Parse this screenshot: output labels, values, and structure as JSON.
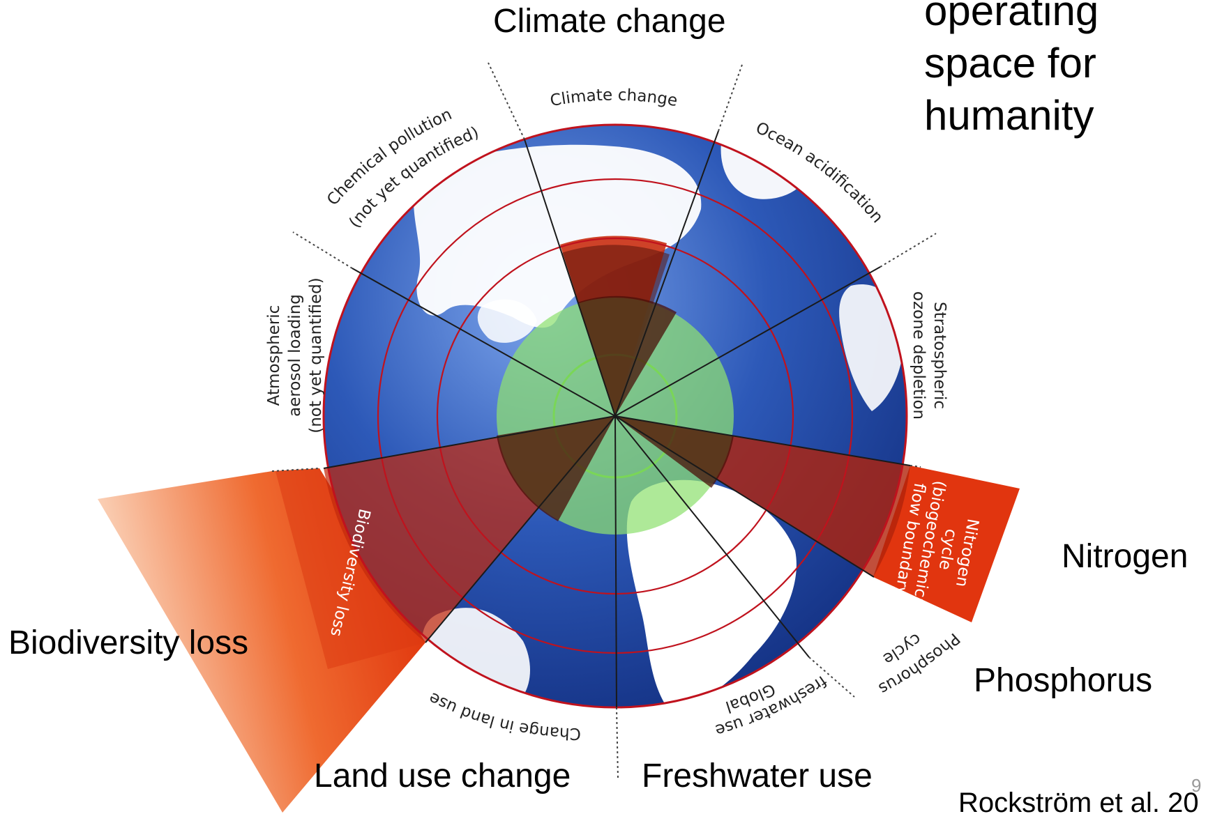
{
  "title": {
    "lines": [
      "operating",
      "space for",
      "humanity"
    ]
  },
  "slide_labels": {
    "climate_change": "Climate change",
    "nitrogen": "Nitrogen",
    "phosphorus": "Phosphorus",
    "biodiversity_loss": "Biodiversity loss",
    "land_use_change": "Land use change",
    "freshwater_use": "Freshwater use"
  },
  "citation": "Rockström et al. 20",
  "slide_number": "9",
  "ring_labels": {
    "climate_change": "Climate change",
    "ocean_acidification": "Ocean acidification",
    "stratospheric_1": "Stratospheric",
    "stratospheric_2": "ozone depletion",
    "nitrogen_1": "Nitrogen",
    "nitrogen_2": "cycle",
    "nitrogen_3": "(biogeochemical",
    "nitrogen_4": "flow boundary)",
    "phosphorus_1": "Phosphorus",
    "phosphorus_2": "cycle",
    "freshwater_1": "Global",
    "freshwater_2": "freshwater use",
    "land_use": "Change in land use",
    "biodiversity": "Biodiversity loss",
    "aerosol_1": "Atmospheric",
    "aerosol_2": "aerosol loading",
    "aerosol_3": "(not yet quantified)",
    "chemical_1": "Chemical pollution",
    "chemical_2": "(not yet quantified)"
  },
  "colors": {
    "ocean": "#2d59b8",
    "ocean_dark": "#142f86",
    "land": "#ffffff",
    "exceeded": "#d92e0b",
    "safe_zone": "#8fe070",
    "boundary": "#c0121d"
  }
}
